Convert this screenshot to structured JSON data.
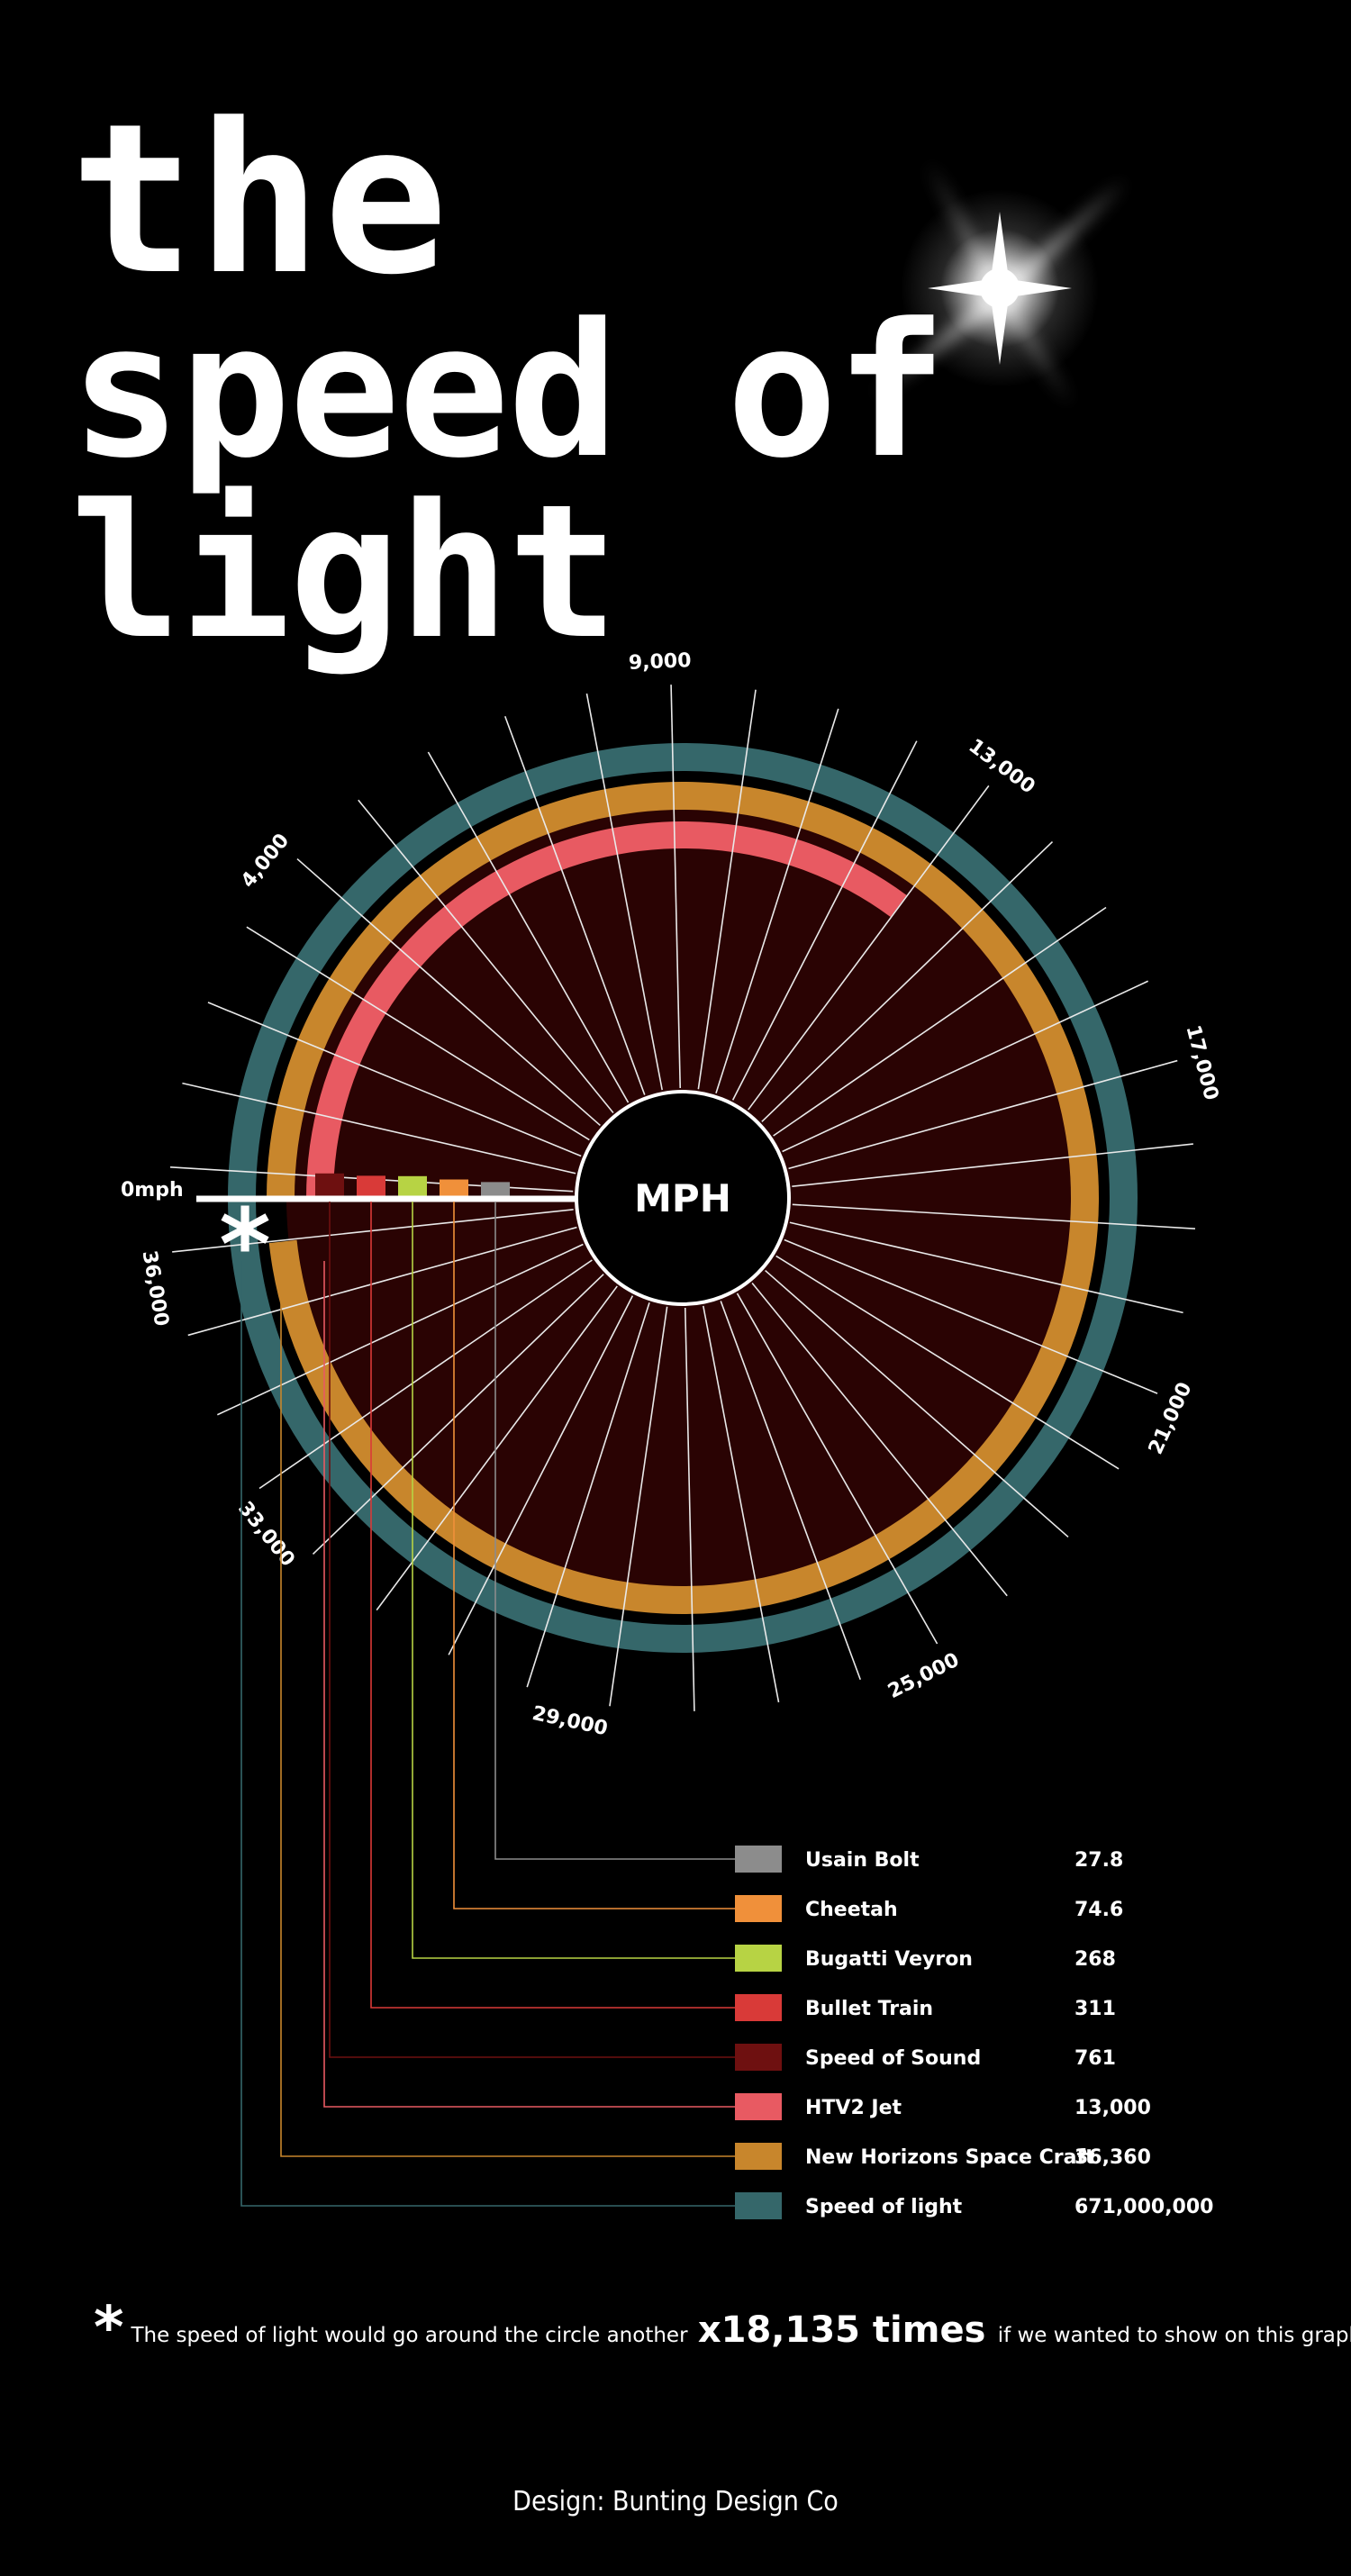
{
  "header": {
    "title_line1": "the",
    "title_line2": "speed of light"
  },
  "colors": {
    "background": "#000000",
    "disc": "#2a0303",
    "spoke": "#e9e9e9"
  },
  "chart_data": {
    "type": "radial-bar",
    "center_label": "MPH",
    "zero_label": "0mph",
    "scale_max": 37000,
    "tick_labels": [
      {
        "value": 4000,
        "label": "4,000"
      },
      {
        "value": 9000,
        "label": "9,000"
      },
      {
        "value": 13000,
        "label": "13,000"
      },
      {
        "value": 17000,
        "label": "17,000"
      },
      {
        "value": 21000,
        "label": "21,000"
      },
      {
        "value": 25000,
        "label": "25,000"
      },
      {
        "value": 29000,
        "label": "29,000"
      },
      {
        "value": 33000,
        "label": "33,000"
      },
      {
        "value": 36000,
        "label": "36,000"
      }
    ],
    "spoke_count": 38,
    "overflow_marker": "*",
    "series": [
      {
        "name": "Usain Bolt",
        "value": 27.8,
        "display": "27.8",
        "color": "#8c8c8c"
      },
      {
        "name": "Cheetah",
        "value": 74.6,
        "display": "74.6",
        "color": "#f0903a"
      },
      {
        "name": "Bugatti Veyron",
        "value": 268,
        "display": "268",
        "color": "#b7d344"
      },
      {
        "name": "Bullet Train",
        "value": 311,
        "display": "311",
        "color": "#d93a38"
      },
      {
        "name": "Speed of Sound",
        "value": 761,
        "display": "761",
        "color": "#6e1010"
      },
      {
        "name": "HTV2 Jet",
        "value": 13000,
        "display": "13,000",
        "color": "#e85a62"
      },
      {
        "name": "New Horizons Space Craft",
        "value": 36360,
        "display": "36,360",
        "color": "#c8862c"
      },
      {
        "name": "Speed of light",
        "value": 671000000,
        "display": "671,000,000",
        "color": "#35676a"
      }
    ]
  },
  "footnote": {
    "star": "*",
    "prefix": "The speed of light would go around the circle another",
    "highlight": "x18,135 times",
    "suffix": "if we wanted to show on this graph."
  },
  "credit": "Design: Bunting Design Co"
}
